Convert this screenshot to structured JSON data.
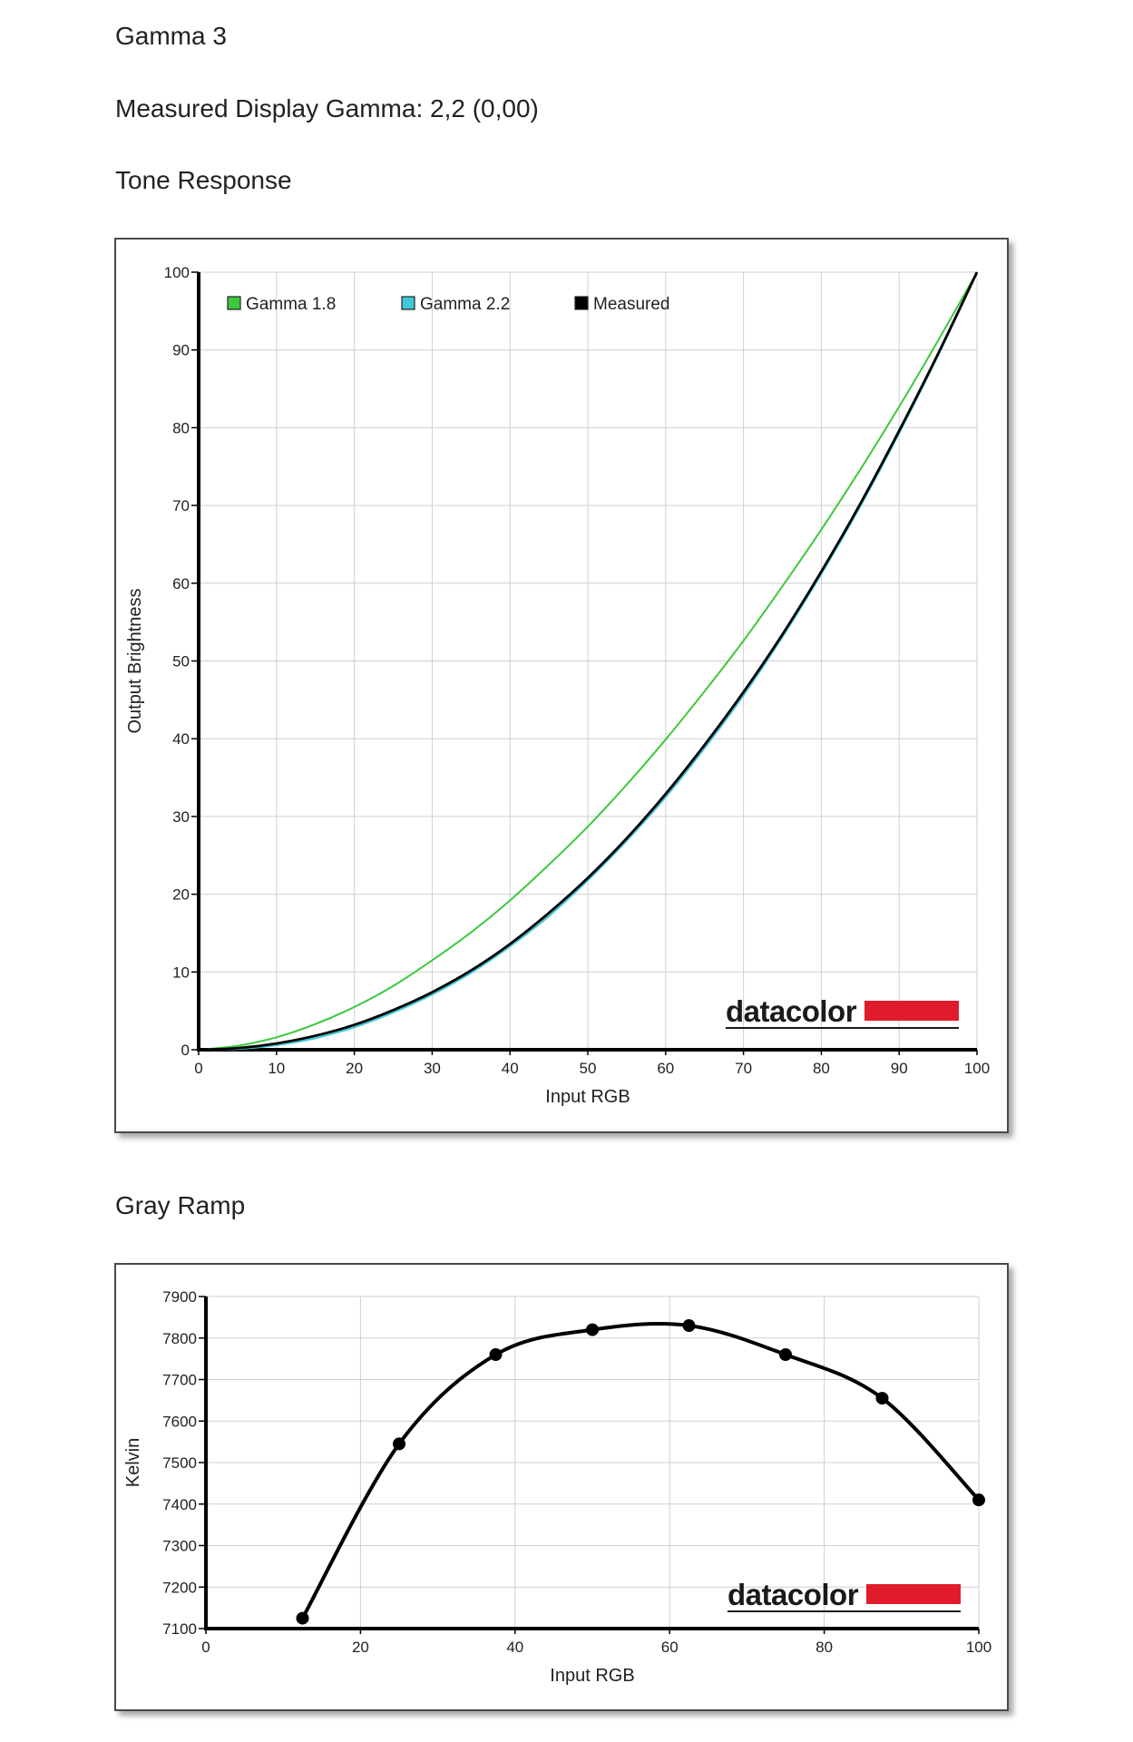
{
  "page": {
    "section_title": "Gamma 3",
    "measured_gamma_text": "Measured Display Gamma: 2,2 (0,00)",
    "tone_heading": "Tone Response",
    "gray_heading": "Gray Ramp"
  },
  "brand": {
    "logo_text": "datacolor",
    "logo_color": "#e01b2b"
  },
  "chart_data": [
    {
      "type": "line",
      "title": "Tone Response",
      "xlabel": "Input RGB",
      "ylabel": "Output Brightness",
      "xlim": [
        0,
        100
      ],
      "ylim": [
        0,
        100
      ],
      "xticks": [
        0,
        10,
        20,
        30,
        40,
        50,
        60,
        70,
        80,
        90,
        100
      ],
      "yticks": [
        0,
        10,
        20,
        30,
        40,
        50,
        60,
        70,
        80,
        90,
        100
      ],
      "grid": true,
      "legend_position": "top-left",
      "x": [
        0,
        5,
        10,
        15,
        20,
        25,
        30,
        35,
        40,
        45,
        50,
        55,
        60,
        65,
        70,
        75,
        80,
        85,
        90,
        95,
        100
      ],
      "series": [
        {
          "name": "Gamma 1.8",
          "color": "#3cc83c",
          "values": [
            0,
            0.5,
            1.6,
            3.3,
            5.5,
            8.2,
            11.5,
            15.1,
            19.2,
            23.8,
            28.7,
            34.1,
            39.9,
            46.1,
            52.6,
            59.6,
            66.9,
            74.6,
            82.7,
            91.2,
            100
          ]
        },
        {
          "name": "Gamma 2.2",
          "color": "#40c8d8",
          "values": [
            0,
            0.1,
            0.6,
            1.5,
            2.9,
            4.8,
            7.1,
            9.9,
            13.3,
            17.2,
            21.8,
            26.9,
            32.5,
            38.8,
            45.6,
            53.1,
            61.2,
            69.9,
            79.3,
            89.3,
            100
          ]
        },
        {
          "name": "Measured",
          "color": "#000000",
          "values": [
            0,
            0.2,
            0.8,
            1.8,
            3.2,
            5.1,
            7.4,
            10.2,
            13.6,
            17.6,
            22.1,
            27.2,
            32.9,
            39.2,
            46.0,
            53.4,
            61.5,
            70.2,
            79.6,
            89.5,
            100
          ]
        }
      ]
    },
    {
      "type": "line",
      "title": "Gray Ramp",
      "xlabel": "Input RGB",
      "ylabel": "Kelvin",
      "xlim": [
        0,
        100
      ],
      "ylim": [
        7100,
        7900
      ],
      "xticks": [
        0,
        20,
        40,
        60,
        80,
        100
      ],
      "yticks": [
        7100,
        7200,
        7300,
        7400,
        7500,
        7600,
        7700,
        7800,
        7900
      ],
      "grid": true,
      "x": [
        12.5,
        25,
        37.5,
        50,
        62.5,
        75,
        87.5,
        100
      ],
      "series": [
        {
          "color": "#000000",
          "values": [
            7125,
            7545,
            7760,
            7820,
            7830,
            7760,
            7655,
            7410
          ]
        }
      ]
    }
  ]
}
